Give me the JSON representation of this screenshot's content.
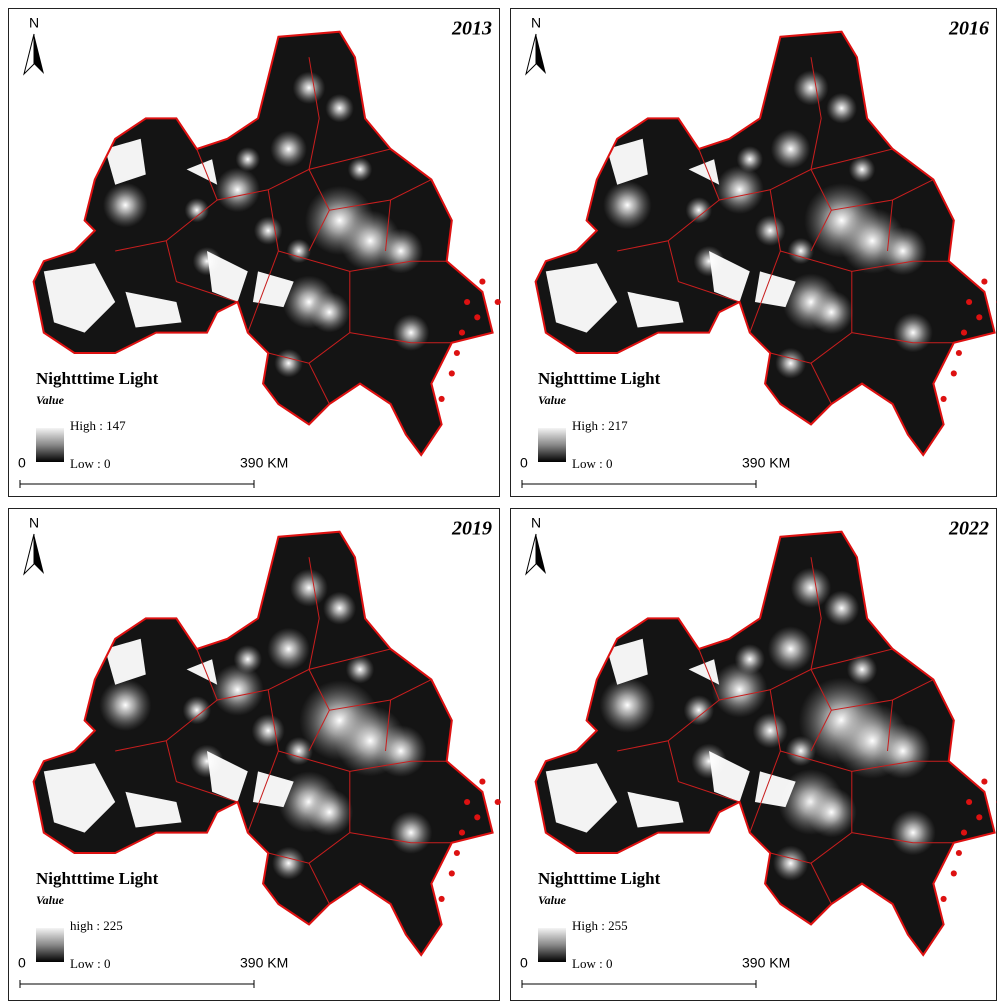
{
  "panels": [
    {
      "year": "2013",
      "north": "N",
      "legend": {
        "title": "Nightttime Light",
        "subtitle": "Value",
        "high": "High : 147",
        "low": "Low : 0"
      },
      "scale": {
        "start": "0",
        "end": "390 KM"
      }
    },
    {
      "year": "2016",
      "north": "N",
      "legend": {
        "title": "Nightttime Light",
        "subtitle": "Value",
        "high": "High : 217",
        "low": "Low : 0"
      },
      "scale": {
        "start": "0",
        "end": "390 KM"
      }
    },
    {
      "year": "2019",
      "north": "N",
      "legend": {
        "title": "Nightttime Light",
        "subtitle": "Value",
        "high": "high : 225",
        "low": "Low : 0"
      },
      "scale": {
        "start": "0",
        "end": "390 KM"
      }
    },
    {
      "year": "2022",
      "north": "N",
      "legend": {
        "title": "Nightttime Light",
        "subtitle": "Value",
        "high": "High : 255",
        "low": "Low : 0"
      },
      "scale": {
        "start": "0",
        "end": "390 KM"
      }
    }
  ]
}
